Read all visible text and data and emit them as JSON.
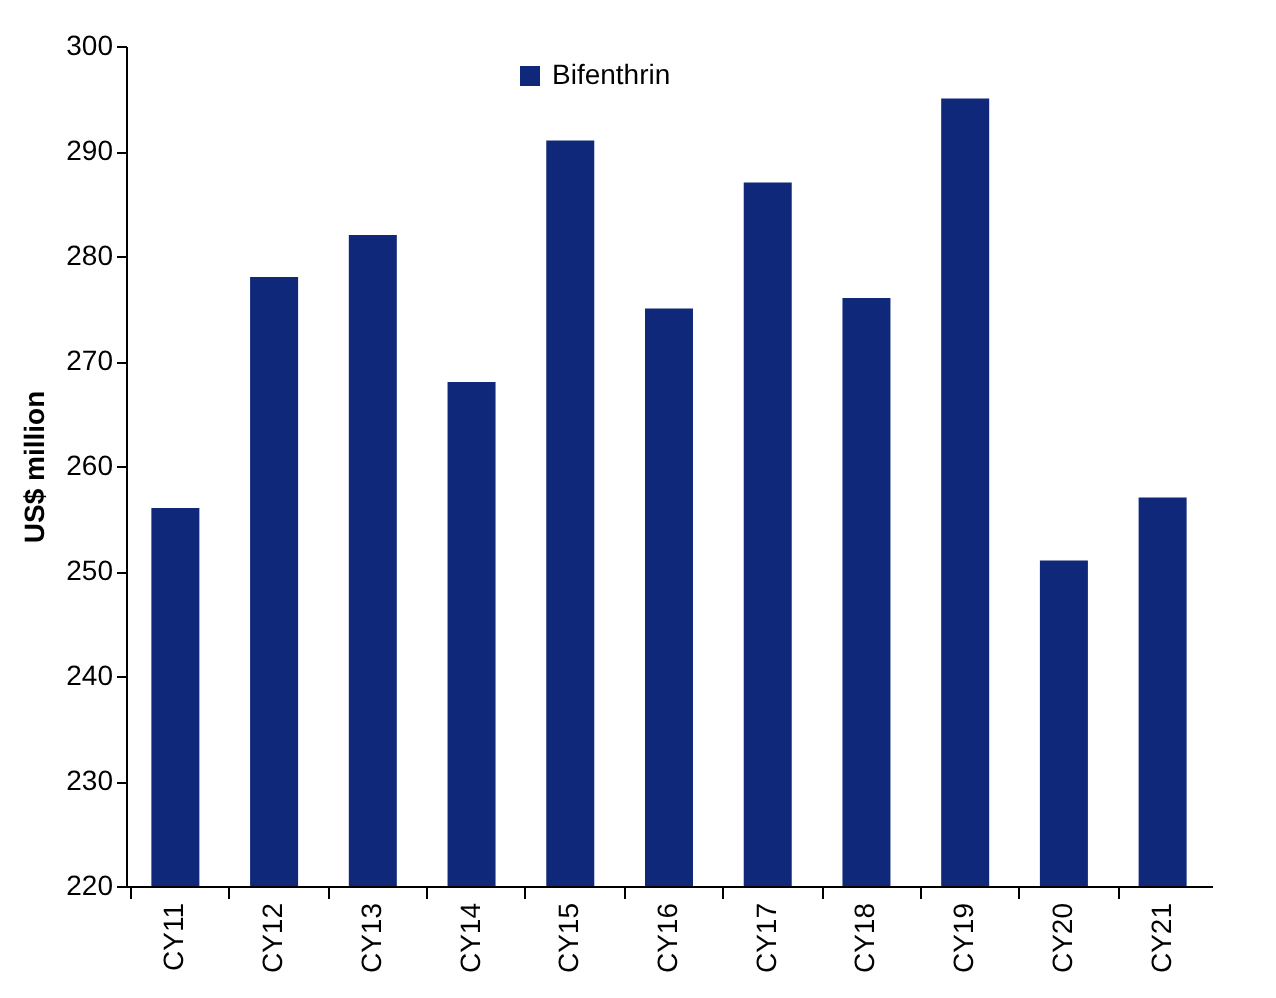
{
  "chart_data": {
    "type": "bar",
    "ylabel": "US$ million",
    "categories": [
      "CY11",
      "CY12",
      "CY13",
      "CY14",
      "CY15",
      "CY16",
      "CY17",
      "CY18",
      "CY19",
      "CY20",
      "CY21"
    ],
    "series": [
      {
        "name": "Bifenthrin",
        "color": "#10287a",
        "values": [
          256,
          278,
          282,
          268,
          291,
          275,
          287,
          276,
          295,
          251,
          257
        ]
      }
    ],
    "ylim": [
      220,
      300
    ],
    "yticks": [
      220,
      230,
      240,
      250,
      260,
      270,
      280,
      290,
      300
    ],
    "grid": false,
    "legend": "top"
  }
}
